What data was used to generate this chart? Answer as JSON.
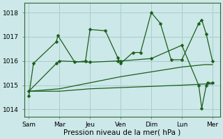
{
  "bg_color": "#cce8e8",
  "grid_color": "#aacccc",
  "line_color": "#1a5e1a",
  "xlabel": "Pression niveau de la mer( hPa )",
  "ylim": [
    1013.7,
    1018.4
  ],
  "yticks": [
    1014,
    1015,
    1016,
    1017,
    1018
  ],
  "xtick_labels": [
    "Sam",
    "Mar",
    "Jeu",
    "Ven",
    "Dim",
    "Lun",
    "Mer"
  ],
  "xtick_pos": [
    0,
    1,
    2,
    3,
    4,
    5,
    6
  ],
  "xlim": [
    -0.15,
    6.25
  ],
  "line_jagged_x": [
    0,
    0.15,
    0.9,
    0.95,
    1.5,
    1.85,
    2.0,
    2.5,
    2.9,
    3.0,
    3.4,
    3.65,
    4.0,
    4.3,
    4.65,
    5.0,
    5.55,
    5.65,
    5.8,
    6.0
  ],
  "line_jagged_y": [
    1014.55,
    1015.9,
    1016.8,
    1017.05,
    1015.95,
    1016.0,
    1017.3,
    1017.25,
    1016.15,
    1015.9,
    1016.35,
    1016.35,
    1018.0,
    1017.55,
    1016.05,
    1016.05,
    1017.55,
    1017.7,
    1017.1,
    1016.0
  ],
  "line_flat1_x": [
    0,
    1,
    2,
    3,
    4,
    5,
    5.75,
    6.0
  ],
  "line_flat1_y": [
    1014.75,
    1014.75,
    1014.85,
    1014.9,
    1014.95,
    1015.0,
    1015.05,
    1015.05
  ],
  "line_flat2_x": [
    0,
    1,
    2,
    3,
    4,
    5,
    5.75,
    6.0
  ],
  "line_flat2_y": [
    1014.75,
    1014.85,
    1015.1,
    1015.35,
    1015.55,
    1015.75,
    1015.85,
    1015.85
  ],
  "line_diag_x": [
    0,
    0.9,
    1.0,
    2.0,
    2.9,
    3.0,
    4.0,
    5.0,
    5.55,
    5.65,
    5.8,
    5.85,
    6.0
  ],
  "line_diag_y": [
    1014.75,
    1015.9,
    1016.0,
    1015.95,
    1016.0,
    1016.0,
    1016.1,
    1016.65,
    1015.0,
    1014.05,
    1015.0,
    1015.1,
    1015.1
  ]
}
